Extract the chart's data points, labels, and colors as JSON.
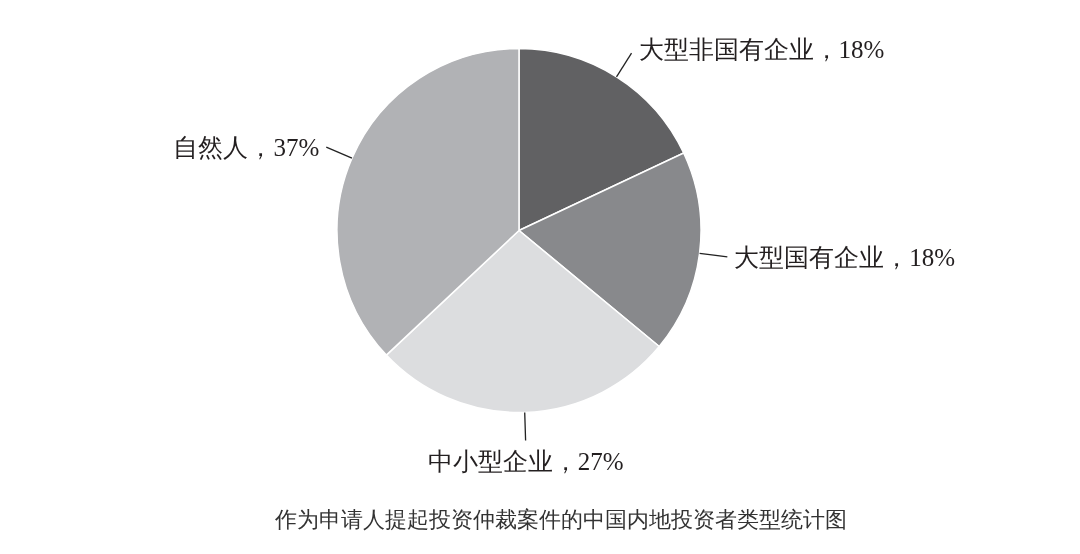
{
  "chart_data": {
    "type": "pie",
    "title": "作为申请人提起投资仲裁案件的中国内地投资者类型统计图",
    "categories": [
      "大型非国有企业",
      "大型国有企业",
      "中小型企业",
      "自然人"
    ],
    "values": [
      18,
      18,
      27,
      37
    ],
    "colors": [
      "#616163",
      "#88898c",
      "#dcdddf",
      "#b1b2b5"
    ],
    "value_labels": [
      "，18%",
      "，18%",
      "，27%",
      "，37%"
    ]
  }
}
